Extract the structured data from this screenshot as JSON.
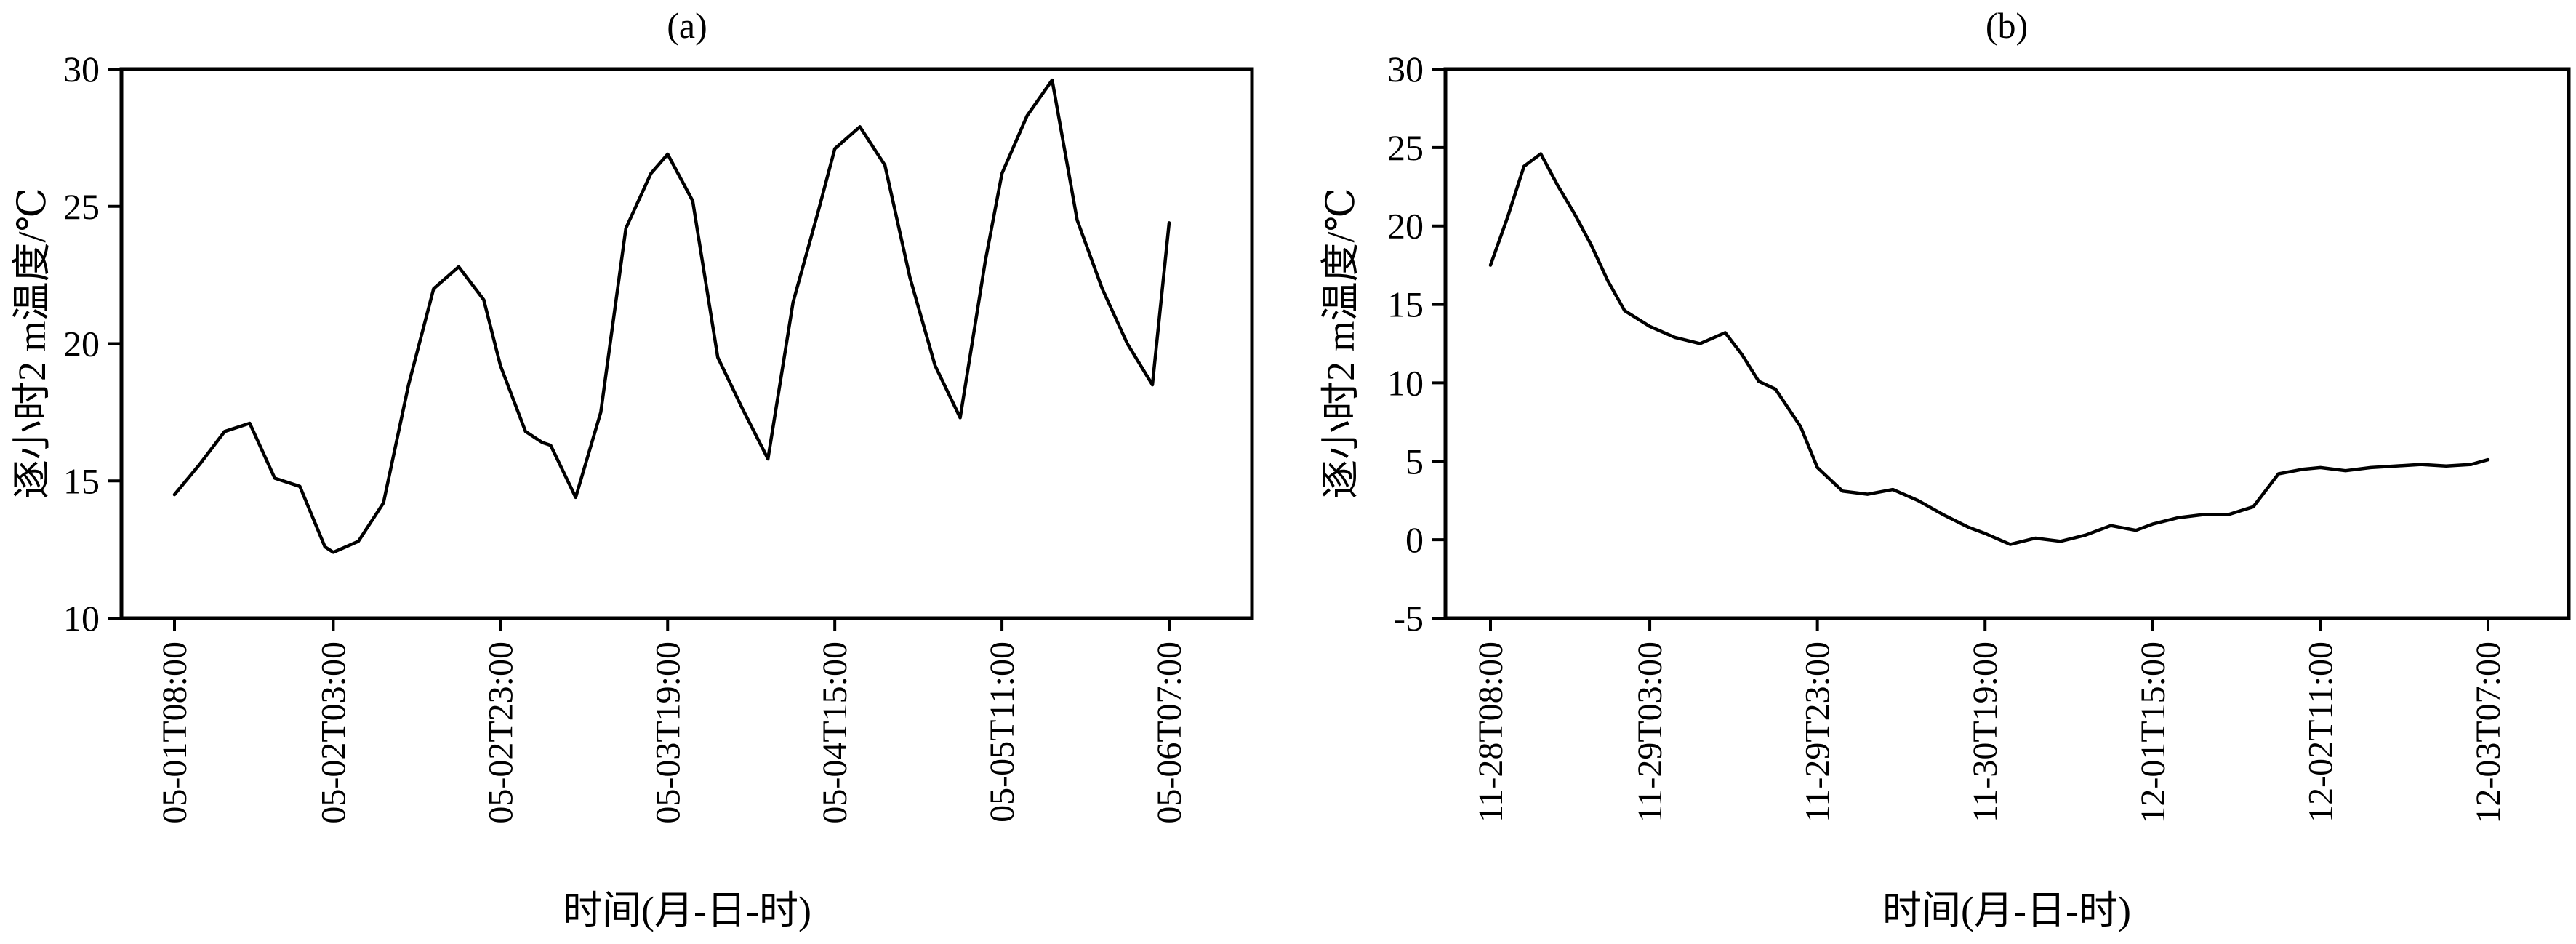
{
  "chart_data": [
    {
      "type": "line",
      "title": "(a)",
      "xlabel": "时间(月-日-时)",
      "ylabel": "逐小时2 m温度/℃",
      "ylim": [
        10,
        30
      ],
      "yticks": [
        10,
        15,
        20,
        25,
        30
      ],
      "xticks": [
        "05-01T08:00",
        "05-02T03:00",
        "05-02T23:00",
        "05-03T19:00",
        "05-04T15:00",
        "05-05T11:00",
        "05-06T07:00"
      ],
      "grid": false,
      "series": [
        {
          "color": "#000000",
          "x": [
            "05-01T08:00",
            "05-01T11:00",
            "05-01T14:00",
            "05-01T17:00",
            "05-01T20:00",
            "05-01T23:00",
            "05-02T02:00",
            "05-02T03:00",
            "05-02T06:00",
            "05-02T09:00",
            "05-02T12:00",
            "05-02T15:00",
            "05-02T18:00",
            "05-02T21:00",
            "05-02T23:00",
            "05-03T02:00",
            "05-03T04:00",
            "05-03T05:00",
            "05-03T08:00",
            "05-03T11:00",
            "05-03T14:00",
            "05-03T17:00",
            "05-03T19:00",
            "05-03T22:00",
            "05-04T01:00",
            "05-04T04:00",
            "05-04T07:00",
            "05-04T10:00",
            "05-04T13:00",
            "05-04T15:00",
            "05-04T18:00",
            "05-04T21:00",
            "05-05T00:00",
            "05-05T03:00",
            "05-05T06:00",
            "05-05T09:00",
            "05-05T11:00",
            "05-05T14:00",
            "05-05T17:00",
            "05-05T20:00",
            "05-05T23:00",
            "05-06T02:00",
            "05-06T05:00",
            "05-06T07:00"
          ],
          "y": [
            14.5,
            15.6,
            16.8,
            17.1,
            15.1,
            14.8,
            12.6,
            12.4,
            12.8,
            14.2,
            18.5,
            22.0,
            22.8,
            21.6,
            19.2,
            16.8,
            16.4,
            16.3,
            14.4,
            17.5,
            24.2,
            26.2,
            26.9,
            25.2,
            19.5,
            17.6,
            15.8,
            21.5,
            24.8,
            27.1,
            27.9,
            26.5,
            22.4,
            19.2,
            17.3,
            23.0,
            26.2,
            28.3,
            29.6,
            24.5,
            22.0,
            20.0,
            18.5,
            24.4
          ]
        }
      ]
    },
    {
      "type": "line",
      "title": "(b)",
      "xlabel": "时间(月-日-时)",
      "ylabel": "逐小时2 m温度/℃",
      "ylim": [
        -5,
        30
      ],
      "yticks": [
        -5,
        0,
        5,
        10,
        15,
        20,
        25,
        30
      ],
      "xticks": [
        "11-28T08:00",
        "11-29T03:00",
        "11-29T23:00",
        "11-30T19:00",
        "12-01T15:00",
        "12-02T11:00",
        "12-03T07:00"
      ],
      "grid": false,
      "series": [
        {
          "color": "#000000",
          "x": [
            "11-28T08:00",
            "11-28T10:00",
            "11-28T12:00",
            "11-28T14:00",
            "11-28T16:00",
            "11-28T18:00",
            "11-28T20:00",
            "11-28T22:00",
            "11-29T00:00",
            "11-29T03:00",
            "11-29T06:00",
            "11-29T09:00",
            "11-29T12:00",
            "11-29T14:00",
            "11-29T16:00",
            "11-29T18:00",
            "11-29T21:00",
            "11-29T23:00",
            "11-30T02:00",
            "11-30T05:00",
            "11-30T08:00",
            "11-30T11:00",
            "11-30T14:00",
            "11-30T17:00",
            "11-30T19:00",
            "11-30T22:00",
            "12-01T01:00",
            "12-01T04:00",
            "12-01T07:00",
            "12-01T10:00",
            "12-01T13:00",
            "12-01T15:00",
            "12-01T18:00",
            "12-01T21:00",
            "12-02T00:00",
            "12-02T03:00",
            "12-02T06:00",
            "12-02T09:00",
            "12-02T11:00",
            "12-02T14:00",
            "12-02T17:00",
            "12-02T20:00",
            "12-02T23:00",
            "12-03T02:00",
            "12-03T05:00",
            "12-03T07:00"
          ],
          "y": [
            17.5,
            20.5,
            23.8,
            24.6,
            22.6,
            20.8,
            18.8,
            16.5,
            14.6,
            13.6,
            12.9,
            12.5,
            13.2,
            11.8,
            10.1,
            9.6,
            7.2,
            4.6,
            3.1,
            2.9,
            3.2,
            2.5,
            1.6,
            0.8,
            0.4,
            -0.3,
            0.1,
            -0.1,
            0.3,
            0.9,
            0.6,
            1.0,
            1.4,
            1.6,
            1.6,
            2.1,
            4.2,
            4.5,
            4.6,
            4.4,
            4.6,
            4.7,
            4.8,
            4.7,
            4.8,
            5.1
          ]
        }
      ]
    }
  ]
}
